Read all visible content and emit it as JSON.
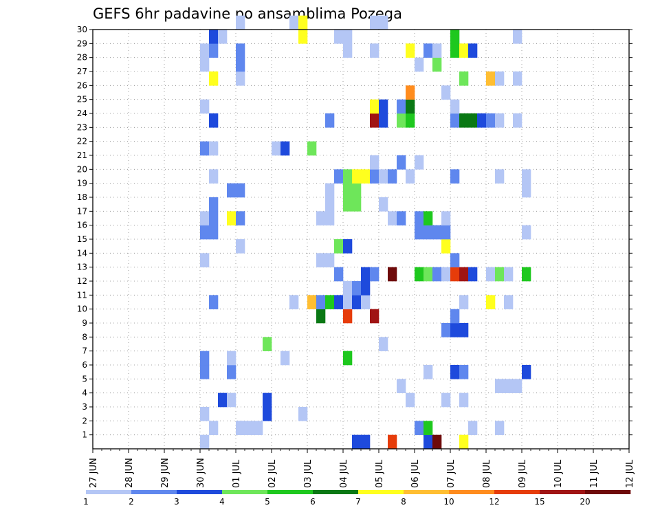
{
  "chart_data": {
    "type": "heatmap",
    "title": "GEFS 6hr padavine po ansamblima Pozega",
    "x_labels": [
      "27 JUN",
      "28 JUN",
      "29 JUN",
      "30 JUN",
      "01 JUL",
      "02 JUL",
      "03 JUL",
      "04 JUL",
      "05 JUL",
      "06 JUL",
      "07 JUL",
      "08 JUL",
      "09 JUL",
      "10 JUL",
      "11 JUL",
      "12 JUL"
    ],
    "y_range": [
      0,
      30
    ],
    "y_ticks": [
      1,
      2,
      3,
      4,
      5,
      6,
      7,
      8,
      9,
      10,
      11,
      12,
      13,
      14,
      15,
      16,
      17,
      18,
      19,
      20,
      21,
      22,
      23,
      24,
      25,
      26,
      27,
      28,
      29,
      30
    ],
    "grid": true,
    "legend": {
      "placement": "bottom",
      "labels": [
        "1",
        "2",
        "3",
        "4",
        "5",
        "6",
        "7",
        "8",
        "10",
        "12",
        "15",
        "20"
      ],
      "colors": [
        "#b4c6f5",
        "#5f87ee",
        "#1e4adc",
        "#6ee65a",
        "#1ec81e",
        "#0a7814",
        "#ffff1e",
        "#ffbe32",
        "#ff8c1e",
        "#e63c0a",
        "#a01414",
        "#6e0a0a"
      ]
    },
    "cells": [
      {
        "x": 12,
        "y": 0,
        "c": 0
      },
      {
        "x": 16,
        "y": 1,
        "c": 0
      },
      {
        "x": 17,
        "y": 1,
        "c": 0
      },
      {
        "x": 18,
        "y": 1,
        "c": 0
      },
      {
        "x": 29,
        "y": 0,
        "c": 2
      },
      {
        "x": 30,
        "y": 0,
        "c": 2
      },
      {
        "x": 33,
        "y": 0,
        "c": 9
      },
      {
        "x": 37,
        "y": 0,
        "c": 2
      },
      {
        "x": 38,
        "y": 0,
        "c": 11
      },
      {
        "x": 41,
        "y": 0,
        "c": 6
      },
      {
        "x": 13,
        "y": 1,
        "c": 0
      },
      {
        "x": 16,
        "y": 1,
        "c": 0
      },
      {
        "x": 36,
        "y": 1,
        "c": 1
      },
      {
        "x": 37,
        "y": 1,
        "c": 4
      },
      {
        "x": 42,
        "y": 1,
        "c": 0
      },
      {
        "x": 45,
        "y": 1,
        "c": 0
      },
      {
        "x": 12,
        "y": 2,
        "c": 0
      },
      {
        "x": 19,
        "y": 2,
        "c": 2
      },
      {
        "x": 19,
        "y": 3,
        "c": 2
      },
      {
        "x": 23,
        "y": 2,
        "c": 0
      },
      {
        "x": 14,
        "y": 3,
        "c": 2
      },
      {
        "x": 15,
        "y": 3,
        "c": 0
      },
      {
        "x": 35,
        "y": 3,
        "c": 0
      },
      {
        "x": 39,
        "y": 3,
        "c": 0
      },
      {
        "x": 41,
        "y": 3,
        "c": 0
      },
      {
        "x": 34,
        "y": 4,
        "c": 0
      },
      {
        "x": 45,
        "y": 4,
        "c": 0
      },
      {
        "x": 46,
        "y": 4,
        "c": 0
      },
      {
        "x": 47,
        "y": 4,
        "c": 0
      },
      {
        "x": 12,
        "y": 5,
        "c": 1
      },
      {
        "x": 15,
        "y": 5,
        "c": 1
      },
      {
        "x": 37,
        "y": 5,
        "c": 0
      },
      {
        "x": 40,
        "y": 5,
        "c": 2
      },
      {
        "x": 41,
        "y": 5,
        "c": 1
      },
      {
        "x": 48,
        "y": 5,
        "c": 2
      },
      {
        "x": 12,
        "y": 6,
        "c": 1
      },
      {
        "x": 15,
        "y": 6,
        "c": 0
      },
      {
        "x": 21,
        "y": 6,
        "c": 0
      },
      {
        "x": 28,
        "y": 6,
        "c": 4
      },
      {
        "x": 19,
        "y": 7,
        "c": 3
      },
      {
        "x": 32,
        "y": 7,
        "c": 0
      },
      {
        "x": 39,
        "y": 8,
        "c": 1
      },
      {
        "x": 40,
        "y": 8,
        "c": 2
      },
      {
        "x": 41,
        "y": 8,
        "c": 2
      },
      {
        "x": 25,
        "y": 9,
        "c": 5
      },
      {
        "x": 28,
        "y": 9,
        "c": 9
      },
      {
        "x": 31,
        "y": 9,
        "c": 10
      },
      {
        "x": 40,
        "y": 9,
        "c": 1
      },
      {
        "x": 13,
        "y": 10,
        "c": 1
      },
      {
        "x": 22,
        "y": 10,
        "c": 0
      },
      {
        "x": 24,
        "y": 10,
        "c": 7
      },
      {
        "x": 25,
        "y": 10,
        "c": 1
      },
      {
        "x": 26,
        "y": 10,
        "c": 4
      },
      {
        "x": 27,
        "y": 10,
        "c": 2
      },
      {
        "x": 28,
        "y": 10,
        "c": 0
      },
      {
        "x": 29,
        "y": 10,
        "c": 2
      },
      {
        "x": 30,
        "y": 10,
        "c": 0
      },
      {
        "x": 41,
        "y": 10,
        "c": 0
      },
      {
        "x": 44,
        "y": 10,
        "c": 6
      },
      {
        "x": 46,
        "y": 10,
        "c": 0
      },
      {
        "x": 28,
        "y": 11,
        "c": 0
      },
      {
        "x": 29,
        "y": 11,
        "c": 1
      },
      {
        "x": 30,
        "y": 11,
        "c": 2
      },
      {
        "x": 27,
        "y": 12,
        "c": 1
      },
      {
        "x": 30,
        "y": 12,
        "c": 2
      },
      {
        "x": 31,
        "y": 12,
        "c": 1
      },
      {
        "x": 33,
        "y": 12,
        "c": 11
      },
      {
        "x": 36,
        "y": 12,
        "c": 4
      },
      {
        "x": 37,
        "y": 12,
        "c": 3
      },
      {
        "x": 38,
        "y": 12,
        "c": 1
      },
      {
        "x": 39,
        "y": 12,
        "c": 0
      },
      {
        "x": 40,
        "y": 12,
        "c": 9
      },
      {
        "x": 41,
        "y": 12,
        "c": 10
      },
      {
        "x": 42,
        "y": 12,
        "c": 2
      },
      {
        "x": 44,
        "y": 12,
        "c": 0
      },
      {
        "x": 45,
        "y": 12,
        "c": 3
      },
      {
        "x": 46,
        "y": 12,
        "c": 0
      },
      {
        "x": 48,
        "y": 12,
        "c": 4
      },
      {
        "x": 12,
        "y": 13,
        "c": 0
      },
      {
        "x": 25,
        "y": 13,
        "c": 0
      },
      {
        "x": 26,
        "y": 13,
        "c": 0
      },
      {
        "x": 40,
        "y": 13,
        "c": 1
      },
      {
        "x": 16,
        "y": 14,
        "c": 0
      },
      {
        "x": 27,
        "y": 14,
        "c": 3
      },
      {
        "x": 28,
        "y": 14,
        "c": 2
      },
      {
        "x": 39,
        "y": 14,
        "c": 6
      },
      {
        "x": 12,
        "y": 15,
        "c": 1
      },
      {
        "x": 13,
        "y": 15,
        "c": 1
      },
      {
        "x": 36,
        "y": 15,
        "c": 1
      },
      {
        "x": 37,
        "y": 15,
        "c": 1
      },
      {
        "x": 38,
        "y": 15,
        "c": 1
      },
      {
        "x": 39,
        "y": 15,
        "c": 1
      },
      {
        "x": 48,
        "y": 15,
        "c": 0
      },
      {
        "x": 12,
        "y": 16,
        "c": 0
      },
      {
        "x": 13,
        "y": 16,
        "c": 1
      },
      {
        "x": 15,
        "y": 16,
        "c": 6
      },
      {
        "x": 16,
        "y": 16,
        "c": 1
      },
      {
        "x": 25,
        "y": 16,
        "c": 0
      },
      {
        "x": 26,
        "y": 16,
        "c": 0
      },
      {
        "x": 33,
        "y": 16,
        "c": 0
      },
      {
        "x": 34,
        "y": 16,
        "c": 1
      },
      {
        "x": 36,
        "y": 16,
        "c": 1
      },
      {
        "x": 37,
        "y": 16,
        "c": 4
      },
      {
        "x": 39,
        "y": 16,
        "c": 0
      },
      {
        "x": 13,
        "y": 17,
        "c": 1
      },
      {
        "x": 26,
        "y": 17,
        "c": 0
      },
      {
        "x": 28,
        "y": 17,
        "c": 3
      },
      {
        "x": 29,
        "y": 17,
        "c": 3
      },
      {
        "x": 32,
        "y": 17,
        "c": 0
      },
      {
        "x": 15,
        "y": 18,
        "c": 1
      },
      {
        "x": 16,
        "y": 18,
        "c": 1
      },
      {
        "x": 26,
        "y": 18,
        "c": 0
      },
      {
        "x": 28,
        "y": 18,
        "c": 3
      },
      {
        "x": 29,
        "y": 18,
        "c": 3
      },
      {
        "x": 48,
        "y": 18,
        "c": 0
      },
      {
        "x": 13,
        "y": 19,
        "c": 0
      },
      {
        "x": 27,
        "y": 19,
        "c": 1
      },
      {
        "x": 28,
        "y": 19,
        "c": 3
      },
      {
        "x": 29,
        "y": 19,
        "c": 6
      },
      {
        "x": 30,
        "y": 19,
        "c": 6
      },
      {
        "x": 31,
        "y": 19,
        "c": 1
      },
      {
        "x": 32,
        "y": 19,
        "c": 0
      },
      {
        "x": 33,
        "y": 19,
        "c": 1
      },
      {
        "x": 35,
        "y": 19,
        "c": 0
      },
      {
        "x": 40,
        "y": 19,
        "c": 1
      },
      {
        "x": 45,
        "y": 19,
        "c": 0
      },
      {
        "x": 48,
        "y": 19,
        "c": 0
      },
      {
        "x": 31,
        "y": 20,
        "c": 0
      },
      {
        "x": 34,
        "y": 20,
        "c": 1
      },
      {
        "x": 36,
        "y": 20,
        "c": 0
      },
      {
        "x": 12,
        "y": 21,
        "c": 1
      },
      {
        "x": 13,
        "y": 21,
        "c": 0
      },
      {
        "x": 20,
        "y": 21,
        "c": 0
      },
      {
        "x": 21,
        "y": 21,
        "c": 2
      },
      {
        "x": 24,
        "y": 21,
        "c": 3
      },
      {
        "x": 13,
        "y": 23,
        "c": 2
      },
      {
        "x": 26,
        "y": 23,
        "c": 1
      },
      {
        "x": 31,
        "y": 23,
        "c": 10
      },
      {
        "x": 32,
        "y": 23,
        "c": 2
      },
      {
        "x": 34,
        "y": 23,
        "c": 3
      },
      {
        "x": 35,
        "y": 23,
        "c": 4
      },
      {
        "x": 40,
        "y": 23,
        "c": 1
      },
      {
        "x": 41,
        "y": 23,
        "c": 5
      },
      {
        "x": 42,
        "y": 23,
        "c": 5
      },
      {
        "x": 43,
        "y": 23,
        "c": 2
      },
      {
        "x": 44,
        "y": 23,
        "c": 1
      },
      {
        "x": 45,
        "y": 23,
        "c": 0
      },
      {
        "x": 47,
        "y": 23,
        "c": 0
      },
      {
        "x": 12,
        "y": 24,
        "c": 0
      },
      {
        "x": 31,
        "y": 24,
        "c": 6
      },
      {
        "x": 32,
        "y": 24,
        "c": 2
      },
      {
        "x": 34,
        "y": 24,
        "c": 1
      },
      {
        "x": 35,
        "y": 24,
        "c": 5
      },
      {
        "x": 40,
        "y": 24,
        "c": 0
      },
      {
        "x": 35,
        "y": 25,
        "c": 8
      },
      {
        "x": 39,
        "y": 25,
        "c": 0
      },
      {
        "x": 13,
        "y": 26,
        "c": 6
      },
      {
        "x": 16,
        "y": 26,
        "c": 0
      },
      {
        "x": 41,
        "y": 26,
        "c": 3
      },
      {
        "x": 44,
        "y": 26,
        "c": 7
      },
      {
        "x": 45,
        "y": 26,
        "c": 0
      },
      {
        "x": 47,
        "y": 26,
        "c": 0
      },
      {
        "x": 12,
        "y": 27,
        "c": 0
      },
      {
        "x": 16,
        "y": 27,
        "c": 1
      },
      {
        "x": 36,
        "y": 27,
        "c": 0
      },
      {
        "x": 38,
        "y": 27,
        "c": 3
      },
      {
        "x": 12,
        "y": 28,
        "c": 0
      },
      {
        "x": 13,
        "y": 28,
        "c": 1
      },
      {
        "x": 16,
        "y": 28,
        "c": 1
      },
      {
        "x": 28,
        "y": 28,
        "c": 0
      },
      {
        "x": 31,
        "y": 28,
        "c": 0
      },
      {
        "x": 35,
        "y": 28,
        "c": 6
      },
      {
        "x": 37,
        "y": 28,
        "c": 1
      },
      {
        "x": 38,
        "y": 28,
        "c": 0
      },
      {
        "x": 40,
        "y": 28,
        "c": 4
      },
      {
        "x": 41,
        "y": 28,
        "c": 6
      },
      {
        "x": 42,
        "y": 28,
        "c": 2
      },
      {
        "x": 13,
        "y": 29,
        "c": 2
      },
      {
        "x": 14,
        "y": 29,
        "c": 0
      },
      {
        "x": 23,
        "y": 29,
        "c": 6
      },
      {
        "x": 27,
        "y": 29,
        "c": 0
      },
      {
        "x": 28,
        "y": 29,
        "c": 0
      },
      {
        "x": 40,
        "y": 29,
        "c": 4
      },
      {
        "x": 47,
        "y": 29,
        "c": 0
      },
      {
        "x": 16,
        "y": 30,
        "c": 0
      },
      {
        "x": 22,
        "y": 30,
        "c": 0
      },
      {
        "x": 23,
        "y": 30,
        "c": 6
      },
      {
        "x": 31,
        "y": 30,
        "c": 0
      },
      {
        "x": 32,
        "y": 30,
        "c": 0
      }
    ]
  }
}
